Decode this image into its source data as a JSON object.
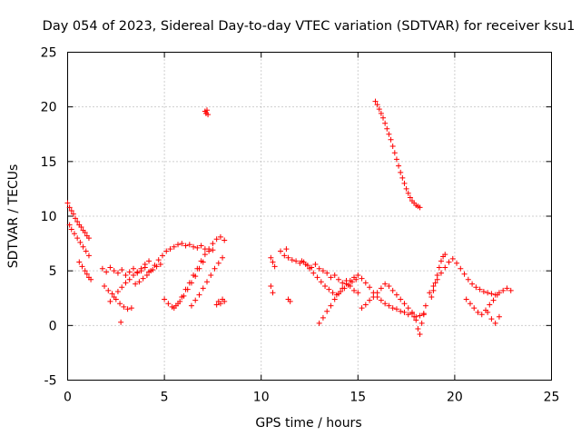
{
  "chart_data": {
    "type": "scatter",
    "title": "Day 054 of 2023, Sidereal Day-to-day VTEC variation (SDTVAR) for receiver ksu1",
    "xlabel": "GPS time / hours",
    "ylabel": "SDTVAR / TECUs",
    "xlim": [
      0,
      25
    ],
    "ylim": [
      -5,
      25
    ],
    "xticks": [
      "0",
      "5",
      "10",
      "15",
      "20",
      "25"
    ],
    "yticks": [
      "-5",
      "0",
      "5",
      "10",
      "15",
      "20",
      "25"
    ],
    "grid": true,
    "marker": "+",
    "color": "#ff0000",
    "series": [
      {
        "name": "SDTVAR",
        "x": [
          0.0,
          0.1,
          0.2,
          0.3,
          0.4,
          0.5,
          0.6,
          0.7,
          0.8,
          0.9,
          1.0,
          1.1,
          0.1,
          0.2,
          0.35,
          0.5,
          0.65,
          0.8,
          0.95,
          1.1,
          0.6,
          0.75,
          0.9,
          1.0,
          1.1,
          1.2,
          1.8,
          2.0,
          2.2,
          2.4,
          2.6,
          2.8,
          3.0,
          3.2,
          3.4,
          3.6,
          3.8,
          4.0,
          4.2,
          4.4,
          4.6,
          4.8,
          1.9,
          2.1,
          2.3,
          2.5,
          2.7,
          2.9,
          3.1,
          3.3,
          2.2,
          2.4,
          2.6,
          2.8,
          3.0,
          3.2,
          3.4,
          3.6,
          3.8,
          4.0,
          4.2,
          2.75,
          3.5,
          3.7,
          3.9,
          4.1,
          4.3,
          4.5,
          4.7,
          4.9,
          5.1,
          5.3,
          5.5,
          5.7,
          5.9,
          6.1,
          6.3,
          6.5,
          6.7,
          6.9,
          7.1,
          7.3,
          7.5,
          5.0,
          5.2,
          5.4,
          5.6,
          5.8,
          6.0,
          6.2,
          6.4,
          6.6,
          6.8,
          7.0,
          5.5,
          5.7,
          5.9,
          6.1,
          6.3,
          6.5,
          6.7,
          6.9,
          7.1,
          7.3,
          7.5,
          7.7,
          7.9,
          8.1,
          6.4,
          6.6,
          6.8,
          7.0,
          7.2,
          7.4,
          7.6,
          7.8,
          8.0,
          7.7,
          7.8,
          7.9,
          8.0,
          8.1,
          7.1,
          7.15,
          7.2,
          7.25,
          10.5,
          10.6,
          10.7,
          10.5,
          10.6,
          11.0,
          11.2,
          11.4,
          11.6,
          11.8,
          12.0,
          12.2,
          12.4,
          12.6,
          12.8,
          13.0,
          13.2,
          13.4,
          13.6,
          13.8,
          14.0,
          14.2,
          14.4,
          14.6,
          14.8,
          15.0,
          11.3,
          11.4,
          11.5,
          12.1,
          12.3,
          12.5,
          12.7,
          12.9,
          13.1,
          13.3,
          13.5,
          13.7,
          13.9,
          14.1,
          14.3,
          14.5,
          14.7,
          14.9,
          13.0,
          13.2,
          13.4,
          13.6,
          13.8,
          14.0,
          14.2,
          14.4,
          14.6,
          14.8,
          15.0,
          15.2,
          15.4,
          15.6,
          15.8,
          16.0,
          16.2,
          16.4,
          16.6,
          16.8,
          17.0,
          17.2,
          17.4,
          17.6,
          17.8,
          18.0,
          18.2,
          18.4,
          15.2,
          15.4,
          15.6,
          15.8,
          16.0,
          16.2,
          16.4,
          16.6,
          16.8,
          17.0,
          17.2,
          17.4,
          17.6,
          17.8,
          17.9,
          18.0,
          18.1,
          18.2,
          18.3,
          18.4,
          18.5,
          15.9,
          16.0,
          16.1,
          16.2,
          16.3,
          16.4,
          16.5,
          16.6,
          16.7,
          16.8,
          16.9,
          17.0,
          17.1,
          17.2,
          17.3,
          17.4,
          17.5,
          17.6,
          17.7,
          17.8,
          17.9,
          18.0,
          18.1,
          18.2,
          18.8,
          18.9,
          19.0,
          19.1,
          19.2,
          19.3,
          19.4,
          19.5,
          18.7,
          18.9,
          19.1,
          19.3,
          19.5,
          19.7,
          19.9,
          20.1,
          20.3,
          20.5,
          20.7,
          20.9,
          21.1,
          21.3,
          21.5,
          21.7,
          21.9,
          22.1,
          22.3,
          22.5,
          22.7,
          22.9,
          20.6,
          20.8,
          21.0,
          21.2,
          21.4,
          21.6,
          21.8,
          22.0,
          22.2,
          21.7,
          21.9,
          22.1,
          22.3
        ],
        "y": [
          11.2,
          10.8,
          10.5,
          10.2,
          9.8,
          9.5,
          9.2,
          9.0,
          8.7,
          8.5,
          8.2,
          8.0,
          9.2,
          8.8,
          8.4,
          8.0,
          7.6,
          7.2,
          6.8,
          6.4,
          5.8,
          5.4,
          5.0,
          4.7,
          4.4,
          4.2,
          5.2,
          4.9,
          5.3,
          5.0,
          4.8,
          5.1,
          4.6,
          4.9,
          5.2,
          4.8,
          5.0,
          5.3,
          4.9,
          5.1,
          5.4,
          5.6,
          3.6,
          3.2,
          2.9,
          2.4,
          2.0,
          1.7,
          1.5,
          1.6,
          2.2,
          2.6,
          3.1,
          3.5,
          3.9,
          4.2,
          4.6,
          4.9,
          5.2,
          5.6,
          5.9,
          0.3,
          3.8,
          4.0,
          4.3,
          4.6,
          5.0,
          5.5,
          6.0,
          6.4,
          6.8,
          7.0,
          7.2,
          7.4,
          7.5,
          7.3,
          7.4,
          7.2,
          7.1,
          7.3,
          7.0,
          6.8,
          6.9,
          2.4,
          2.0,
          1.7,
          1.8,
          2.2,
          2.7,
          3.3,
          3.9,
          4.5,
          5.2,
          5.8,
          1.6,
          2.0,
          2.6,
          3.3,
          3.9,
          4.6,
          5.2,
          5.9,
          6.5,
          7.0,
          7.5,
          7.9,
          8.1,
          7.8,
          1.8,
          2.3,
          2.8,
          3.4,
          4.0,
          4.6,
          5.2,
          5.7,
          6.2,
          1.9,
          2.2,
          2.0,
          2.4,
          2.2,
          19.6,
          19.4,
          19.7,
          19.3,
          6.2,
          5.8,
          5.4,
          3.6,
          3.0,
          6.8,
          6.4,
          6.2,
          6.0,
          5.9,
          5.7,
          5.8,
          5.5,
          5.3,
          5.6,
          5.2,
          5.0,
          4.8,
          4.4,
          4.6,
          4.2,
          3.9,
          4.1,
          3.6,
          3.2,
          3.0,
          7.0,
          2.4,
          2.2,
          5.9,
          5.6,
          5.2,
          4.8,
          4.4,
          4.0,
          3.6,
          3.3,
          3.0,
          2.8,
          3.1,
          3.4,
          3.7,
          4.0,
          4.2,
          0.2,
          0.7,
          1.3,
          1.8,
          2.4,
          2.9,
          3.4,
          3.8,
          4.1,
          4.4,
          4.6,
          4.3,
          3.9,
          3.5,
          3.0,
          2.6,
          2.3,
          2.0,
          1.8,
          1.6,
          1.5,
          1.3,
          1.2,
          1.0,
          1.1,
          0.8,
          0.9,
          1.1,
          1.6,
          1.9,
          2.3,
          2.6,
          3.0,
          3.4,
          3.8,
          3.6,
          3.2,
          2.8,
          2.4,
          2.0,
          1.6,
          1.2,
          0.8,
          0.5,
          -0.3,
          -0.8,
          0.2,
          1.0,
          1.8,
          20.5,
          20.2,
          19.8,
          19.4,
          19.0,
          18.5,
          18.0,
          17.5,
          17.0,
          16.4,
          15.8,
          15.2,
          14.6,
          14.0,
          13.5,
          13.0,
          12.5,
          12.1,
          11.7,
          11.4,
          11.2,
          11.0,
          10.9,
          10.8,
          2.6,
          3.2,
          3.9,
          4.6,
          5.3,
          5.9,
          6.3,
          6.5,
          3.0,
          3.6,
          4.2,
          4.8,
          5.3,
          5.8,
          6.1,
          5.7,
          5.2,
          4.7,
          4.2,
          3.8,
          3.5,
          3.3,
          3.1,
          3.0,
          2.9,
          2.8,
          3.0,
          3.2,
          3.4,
          3.2,
          2.4,
          2.0,
          1.6,
          1.2,
          1.0,
          1.4,
          1.9,
          2.3,
          2.8,
          1.2,
          0.6,
          0.2,
          0.8
        ]
      }
    ]
  }
}
